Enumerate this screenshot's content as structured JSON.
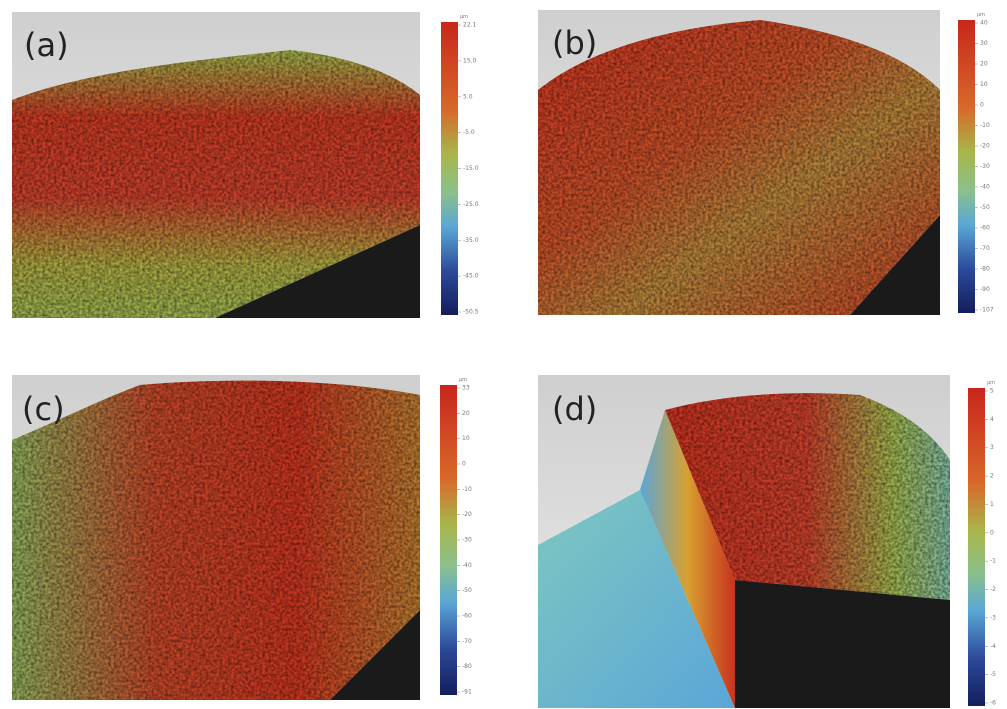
{
  "panels": [
    {
      "label": "(a)",
      "unit": "µm",
      "scale_labels": [
        "22.1",
        "15.0",
        "5.0",
        "-5.0",
        "-15.0",
        "-25.0",
        "-35.0",
        "-45.0",
        "-50.5"
      ]
    },
    {
      "label": "(b)",
      "unit": "µm",
      "scale_labels": [
        "40",
        "30",
        "20",
        "10",
        "0",
        "-10",
        "-20",
        "-30",
        "-40",
        "-50",
        "-60",
        "-70",
        "-80",
        "-90",
        "-107"
      ]
    },
    {
      "label": "(c)",
      "unit": "µm",
      "scale_labels": [
        "33",
        "20",
        "10",
        "0",
        "-10",
        "-20",
        "-30",
        "-40",
        "-50",
        "-60",
        "-70",
        "-80",
        "-91"
      ]
    },
    {
      "label": "(d)",
      "unit": "µm",
      "scale_labels": [
        "5",
        "4",
        "3",
        "2",
        "1",
        "0",
        "-1",
        "-2",
        "-3",
        "-4",
        "-5",
        "-6"
      ]
    }
  ]
}
